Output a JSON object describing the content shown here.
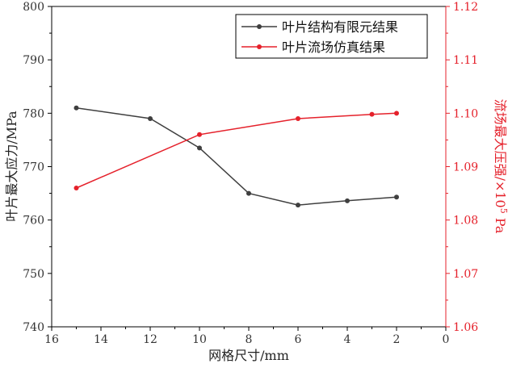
{
  "chart_data": {
    "type": "line",
    "xlabel": "网格尺寸/mm",
    "ylabel_left": "叶片最大应力/MPa",
    "ylabel_right_prefix": "流场最大压强/×10",
    "ylabel_right_sup": "5",
    "ylabel_right_suffix": " Pa",
    "x_ticks": [
      "16",
      "14",
      "12",
      "10",
      "8",
      "6",
      "4",
      "2",
      "0"
    ],
    "x_tick_values": [
      16,
      14,
      12,
      10,
      8,
      6,
      4,
      2,
      0
    ],
    "y_left_ticks": [
      "740",
      "750",
      "760",
      "770",
      "780",
      "790",
      "800"
    ],
    "y_left_tick_values": [
      740,
      750,
      760,
      770,
      780,
      790,
      800
    ],
    "y_right_ticks": [
      "1.06",
      "1.07",
      "1.08",
      "1.09",
      "1.10",
      "1.11",
      "1.12"
    ],
    "y_right_tick_values": [
      1.06,
      1.07,
      1.08,
      1.09,
      1.1,
      1.11,
      1.12
    ],
    "xlim": [
      16,
      0
    ],
    "ylim_left": [
      740,
      800
    ],
    "ylim_right": [
      1.06,
      1.12
    ],
    "legend_position": "top-right",
    "grid": false,
    "series": [
      {
        "name": "叶片结构有限元结果",
        "axis": "left",
        "color": "#3f3f3f",
        "x": [
          15,
          12,
          10,
          8,
          6,
          4,
          2
        ],
        "values": [
          781,
          779,
          773.5,
          765,
          762.8,
          763.6,
          764.3
        ]
      },
      {
        "name": "叶片流场仿真结果",
        "axis": "right",
        "color": "#e5212b",
        "x": [
          15,
          10,
          6,
          3,
          2
        ],
        "values": [
          1.086,
          1.096,
          1.099,
          1.0998,
          1.1
        ]
      }
    ]
  }
}
